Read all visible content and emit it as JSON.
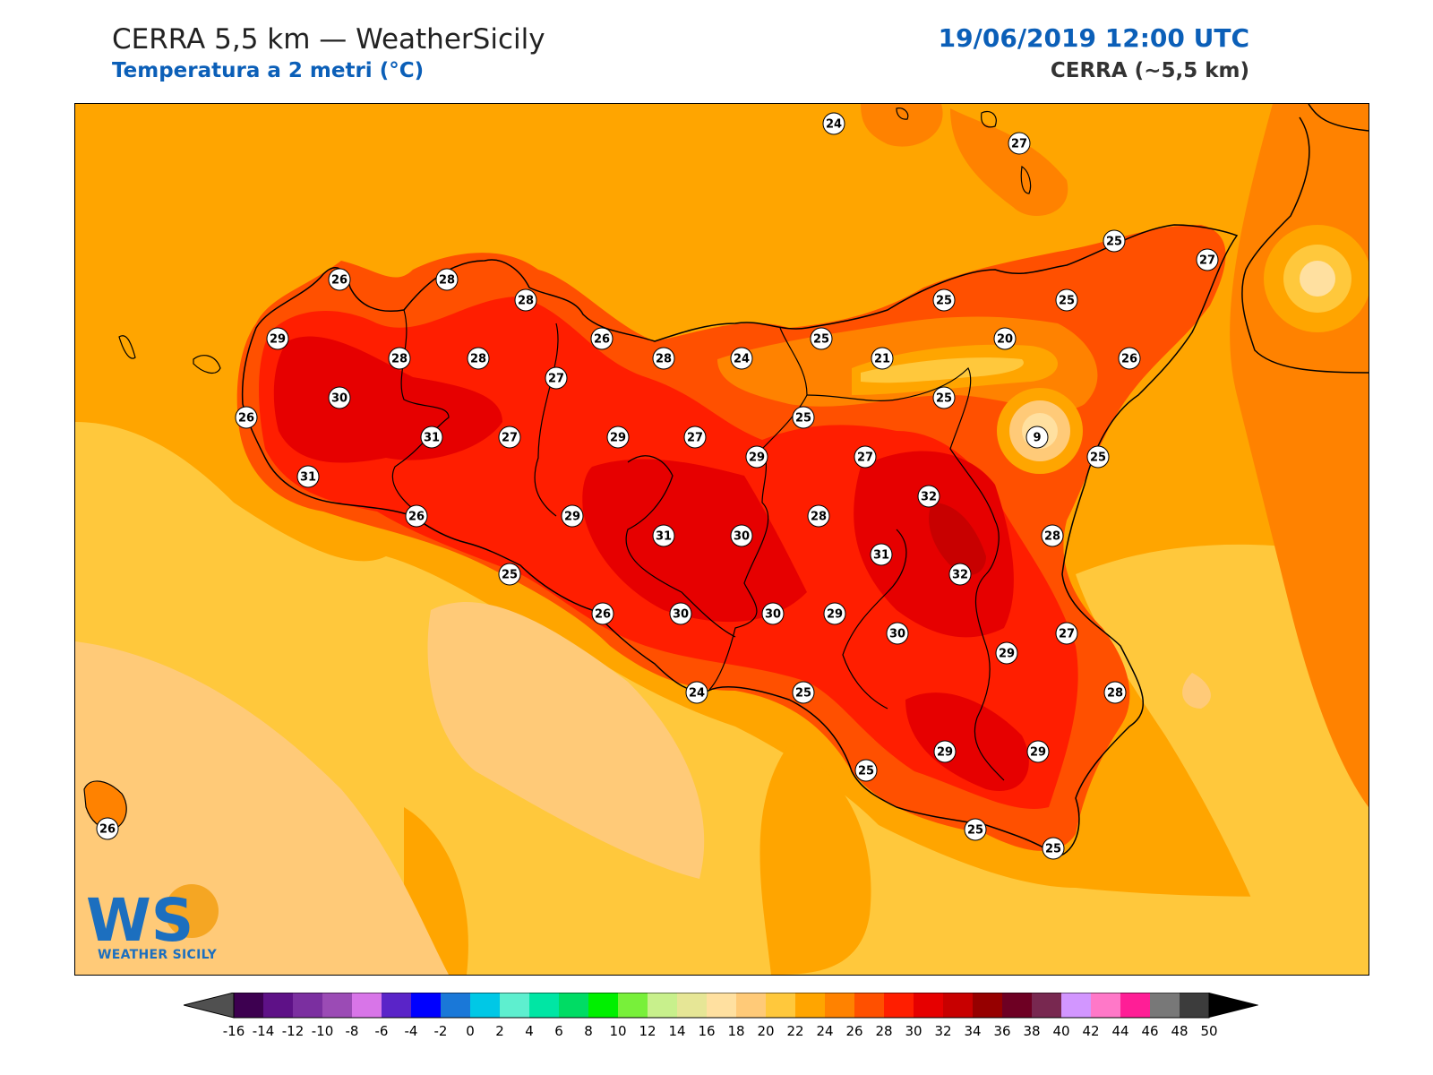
{
  "header": {
    "title": "CERRA 5,5 km — WeatherSicily",
    "subtitle": "Temperatura a 2 metri (°C)",
    "datetime": "19/06/2019 12:00 UTC",
    "model": "CERRA (~5,5 km)"
  },
  "logo": {
    "letters": "WS",
    "text": "WEATHER SICILY"
  },
  "map": {
    "variable": "2m temperature",
    "unit": "°C",
    "background_color": "#ffa500",
    "station_values": [
      {
        "id": "s1",
        "value": "24"
      },
      {
        "id": "s2",
        "value": "27"
      },
      {
        "id": "s3",
        "value": "25"
      },
      {
        "id": "s4",
        "value": "27"
      },
      {
        "id": "s5",
        "value": "26"
      },
      {
        "id": "s6",
        "value": "28"
      },
      {
        "id": "s7",
        "value": "28"
      },
      {
        "id": "s8",
        "value": "25"
      },
      {
        "id": "s9",
        "value": "25"
      },
      {
        "id": "s10",
        "value": "29"
      },
      {
        "id": "s11",
        "value": "26"
      },
      {
        "id": "s12",
        "value": "25"
      },
      {
        "id": "s13",
        "value": "20"
      },
      {
        "id": "s14",
        "value": "28"
      },
      {
        "id": "s15",
        "value": "28"
      },
      {
        "id": "s16",
        "value": "28"
      },
      {
        "id": "s17",
        "value": "24"
      },
      {
        "id": "s18",
        "value": "21"
      },
      {
        "id": "s19",
        "value": "26"
      },
      {
        "id": "s20",
        "value": "30"
      },
      {
        "id": "s21",
        "value": "27"
      },
      {
        "id": "s22",
        "value": "25"
      },
      {
        "id": "s23",
        "value": "25"
      },
      {
        "id": "s24",
        "value": "26"
      },
      {
        "id": "s25",
        "value": "31"
      },
      {
        "id": "s26",
        "value": "27"
      },
      {
        "id": "s27",
        "value": "29"
      },
      {
        "id": "s28",
        "value": "27"
      },
      {
        "id": "s29",
        "value": "9"
      },
      {
        "id": "s30",
        "value": "29"
      },
      {
        "id": "s31",
        "value": "27"
      },
      {
        "id": "s32",
        "value": "25"
      },
      {
        "id": "s33",
        "value": "31"
      },
      {
        "id": "s34",
        "value": "32"
      },
      {
        "id": "s35",
        "value": "26"
      },
      {
        "id": "s36",
        "value": "29"
      },
      {
        "id": "s37",
        "value": "28"
      },
      {
        "id": "s38",
        "value": "31"
      },
      {
        "id": "s39",
        "value": "30"
      },
      {
        "id": "s40",
        "value": "28"
      },
      {
        "id": "s41",
        "value": "31"
      },
      {
        "id": "s42",
        "value": "25"
      },
      {
        "id": "s43",
        "value": "32"
      },
      {
        "id": "s44",
        "value": "26"
      },
      {
        "id": "s45",
        "value": "30"
      },
      {
        "id": "s46",
        "value": "30"
      },
      {
        "id": "s47",
        "value": "29"
      },
      {
        "id": "s48",
        "value": "30"
      },
      {
        "id": "s49",
        "value": "27"
      },
      {
        "id": "s50",
        "value": "29"
      },
      {
        "id": "s51",
        "value": "24"
      },
      {
        "id": "s52",
        "value": "25"
      },
      {
        "id": "s53",
        "value": "28"
      },
      {
        "id": "s54",
        "value": "29"
      },
      {
        "id": "s55",
        "value": "29"
      },
      {
        "id": "s56",
        "value": "25"
      },
      {
        "id": "s57",
        "value": "26"
      },
      {
        "id": "s58",
        "value": "25"
      },
      {
        "id": "s59",
        "value": "25"
      }
    ]
  },
  "colorbar": {
    "ticks": [
      "-16",
      "-14",
      "-12",
      "-10",
      "-8",
      "-6",
      "-4",
      "-2",
      "0",
      "2",
      "4",
      "6",
      "8",
      "10",
      "12",
      "14",
      "16",
      "18",
      "20",
      "22",
      "24",
      "26",
      "28",
      "30",
      "32",
      "34",
      "36",
      "38",
      "40",
      "42",
      "44",
      "46",
      "48",
      "50"
    ],
    "colors": [
      "#3d0050",
      "#5e1187",
      "#7b2fa0",
      "#9b4bb5",
      "#d875e8",
      "#5a24c8",
      "#0000ff",
      "#1a78d8",
      "#00c8e6",
      "#5eefcf",
      "#00e6a4",
      "#00dc64",
      "#00f000",
      "#78f03a",
      "#c8f08c",
      "#e6e696",
      "#ffe0a0",
      "#ffca78",
      "#ffc83c",
      "#ffa500",
      "#ff8200",
      "#ff5000",
      "#ff1e00",
      "#e60000",
      "#c80000",
      "#960000",
      "#6e0023",
      "#782850",
      "#d296ff",
      "#ff78c8",
      "#ff1e96",
      "#787878",
      "#3c3c3c"
    ],
    "under_color": "#505050",
    "over_color": "#000000"
  }
}
